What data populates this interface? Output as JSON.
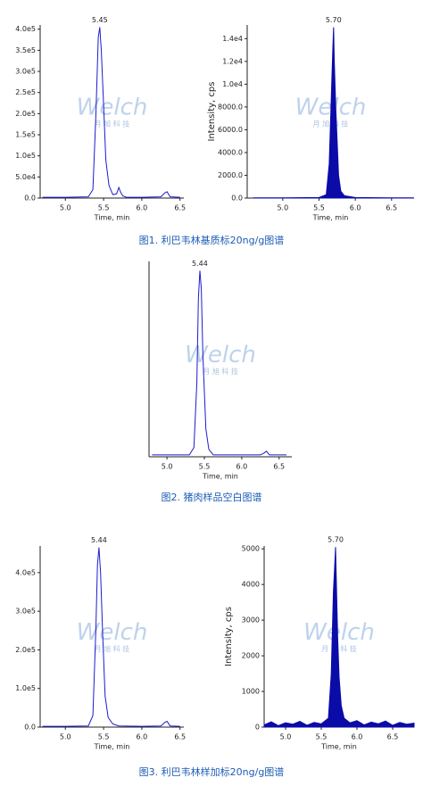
{
  "chart_data": [
    {
      "type": "line",
      "peak_label": "5.45",
      "xlabel": "Time, min",
      "color": "#1c1cd0",
      "fill": false,
      "x": [
        4.7,
        5.0,
        5.3,
        5.36,
        5.4,
        5.43,
        5.45,
        5.47,
        5.5,
        5.53,
        5.57,
        5.62,
        5.67,
        5.7,
        5.72,
        5.75,
        5.8,
        6.0,
        6.25,
        6.3,
        6.33,
        6.37,
        6.5
      ],
      "values": [
        2000,
        2000,
        3000,
        20000,
        200000,
        380000,
        405000,
        350000,
        220000,
        90000,
        30000,
        8000,
        10000,
        25000,
        15000,
        5000,
        2000,
        2000,
        3000,
        12000,
        15000,
        3000,
        2000
      ],
      "xlim": [
        4.67,
        6.55
      ],
      "ylim": [
        0,
        410000
      ],
      "xticks": [
        {
          "value": 5,
          "label": "5.0"
        },
        5.5,
        {
          "value": 6,
          "label": "6.0"
        },
        6.5
      ],
      "yticks": [
        {
          "value": 0,
          "label": "0.0"
        },
        {
          "value": 50000,
          "label": "5.0e4"
        },
        {
          "value": 100000,
          "label": "1.0e5"
        },
        {
          "value": 150000,
          "label": "1.5e5"
        },
        {
          "value": 200000,
          "label": "2.0e5"
        },
        {
          "value": 250000,
          "label": "2.5e5"
        },
        {
          "value": 300000,
          "label": "3.0e5"
        },
        {
          "value": 350000,
          "label": "3.5e5"
        },
        {
          "value": 400000,
          "label": "4.0e5"
        }
      ]
    },
    {
      "type": "area",
      "peak_label": "5.70",
      "xlabel": "Time, min",
      "ylabel": "Intensity, cps",
      "color": "#0b0ba8",
      "fill": true,
      "x": [
        4.6,
        5.0,
        5.5,
        5.6,
        5.64,
        5.67,
        5.69,
        5.7,
        5.71,
        5.73,
        5.75,
        5.77,
        5.8,
        5.85,
        6.0,
        6.5,
        6.8
      ],
      "values": [
        20,
        20,
        50,
        300,
        3000,
        9000,
        13000,
        15000,
        12000,
        8000,
        5000,
        2000,
        600,
        200,
        50,
        20,
        20
      ],
      "xlim": [
        4.51,
        6.81
      ],
      "ylim": [
        0,
        15200
      ],
      "xticks": [
        {
          "value": 5,
          "label": "5.0"
        },
        5.5,
        {
          "value": 6,
          "label": "6.0"
        },
        6.5
      ],
      "yticks": [
        {
          "value": 0,
          "label": "0.0"
        },
        {
          "value": 2000,
          "label": "2000.0"
        },
        {
          "value": 4000,
          "label": "4000.0"
        },
        {
          "value": 6000,
          "label": "6000.0"
        },
        {
          "value": 8000,
          "label": "8000.0"
        },
        {
          "value": 10000,
          "label": "1.0e4"
        },
        {
          "value": 12000,
          "label": "1.2e4"
        },
        {
          "value": 14000,
          "label": "1.4e4"
        }
      ]
    },
    {
      "type": "line",
      "peak_label": "5.44",
      "xlabel": "Time, min",
      "color": "#1c1cd0",
      "fill": false,
      "x": [
        4.8,
        5.0,
        5.3,
        5.36,
        5.4,
        5.42,
        5.44,
        5.46,
        5.48,
        5.52,
        5.56,
        5.62,
        5.7,
        6.0,
        6.25,
        6.3,
        6.33,
        6.37,
        6.6
      ],
      "values": [
        1,
        1,
        1,
        5,
        40,
        85,
        100,
        90,
        55,
        15,
        4,
        1,
        1,
        1,
        1,
        2,
        3,
        1,
        1
      ],
      "xlim": [
        4.76,
        6.67
      ],
      "ylim": [
        0,
        105
      ],
      "xticks": [
        {
          "value": 5,
          "label": "5.0"
        },
        5.5,
        {
          "value": 6,
          "label": "6.0"
        },
        6.5
      ]
    },
    {
      "type": "line",
      "peak_label": "5.44",
      "xlabel": "Time, min",
      "color": "#1c1cd0",
      "fill": false,
      "x": [
        4.7,
        5.0,
        5.3,
        5.36,
        5.4,
        5.42,
        5.44,
        5.46,
        5.49,
        5.52,
        5.56,
        5.62,
        5.7,
        6.0,
        6.25,
        6.3,
        6.33,
        6.37,
        6.5
      ],
      "values": [
        2000,
        2000,
        3000,
        30000,
        260000,
        420000,
        465000,
        400000,
        230000,
        80000,
        25000,
        8000,
        3000,
        2000,
        3000,
        12000,
        15000,
        3000,
        2000
      ],
      "xlim": [
        4.67,
        6.55
      ],
      "ylim": [
        0,
        469000
      ],
      "xticks": [
        {
          "value": 5,
          "label": "5.0"
        },
        5.5,
        {
          "value": 6,
          "label": "6.0"
        },
        6.5
      ],
      "yticks": [
        {
          "value": 0,
          "label": "0.0"
        },
        {
          "value": 100000,
          "label": "1.0e5"
        },
        {
          "value": 200000,
          "label": "2.0e5"
        },
        {
          "value": 300000,
          "label": "3.0e5"
        },
        {
          "value": 400000,
          "label": "4.0e5"
        }
      ]
    },
    {
      "type": "area",
      "peak_label": "5.70",
      "xlabel": "Time, min",
      "ylabel": "Intensity, cps",
      "color": "#0b0ba8",
      "fill": true,
      "x": [
        4.7,
        4.8,
        4.9,
        5.0,
        5.1,
        5.2,
        5.3,
        5.4,
        5.5,
        5.6,
        5.64,
        5.67,
        5.69,
        5.7,
        5.71,
        5.73,
        5.75,
        5.78,
        5.82,
        5.9,
        6.0,
        6.1,
        6.2,
        6.3,
        6.4,
        6.5,
        6.6,
        6.7,
        6.8
      ],
      "values": [
        60,
        150,
        40,
        120,
        80,
        160,
        50,
        130,
        90,
        250,
        1500,
        3800,
        4600,
        5050,
        4200,
        2500,
        1400,
        600,
        250,
        120,
        180,
        60,
        140,
        90,
        170,
        50,
        130,
        80,
        110
      ],
      "xlim": [
        4.7,
        6.8
      ],
      "ylim": [
        0,
        5080
      ],
      "xticks": [
        {
          "value": 5,
          "label": "5.0"
        },
        5.5,
        {
          "value": 6,
          "label": "6.0"
        },
        6.5
      ],
      "yticks": [
        0,
        1000,
        2000,
        3000,
        4000,
        5000
      ]
    }
  ],
  "captions": [
    "图1. 利巴韦林基质标20ng/g图谱",
    "图2. 猪肉样品空白图谱",
    "图3. 利巴韦林样加标20ng/g图谱"
  ],
  "watermark": {
    "brand": "Welch",
    "cn": "月 旭 科 技"
  }
}
